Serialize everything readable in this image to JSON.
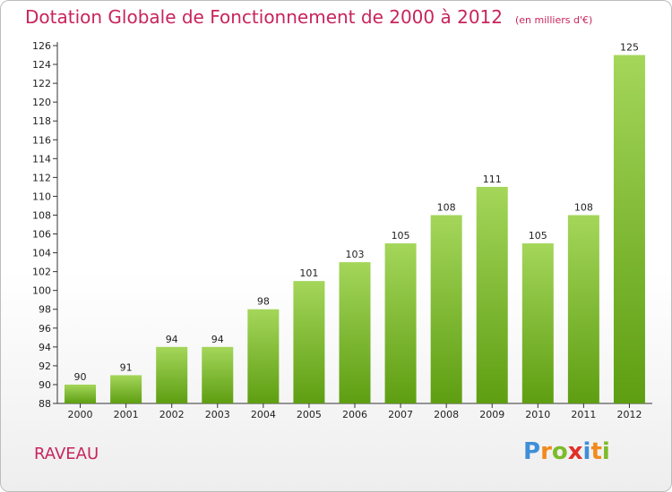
{
  "header": {
    "title": "Dotation Globale de Fonctionnement de 2000 à 2012",
    "subtitle": "(en milliers d'€)"
  },
  "footer": {
    "commune": "RAVEAU",
    "logo_text": "Proxiti",
    "logo_letters": [
      "P",
      "r",
      "o",
      "x",
      "i",
      "t",
      "i"
    ]
  },
  "colors": {
    "title": "#c8245d",
    "bar_top": "#a4d65a",
    "bar_bottom": "#5e9e12",
    "logo": [
      "#3e8fd8",
      "#f28a1b",
      "#7dbb2a",
      "#e0302a",
      "#3e8fd8",
      "#f28a1b",
      "#7dbb2a"
    ]
  },
  "chart_data": {
    "type": "bar",
    "title": "Dotation Globale de Fonctionnement de 2000 à 2012",
    "subtitle": "(en milliers d'€)",
    "categories": [
      "2000",
      "2001",
      "2002",
      "2003",
      "2004",
      "2005",
      "2006",
      "2007",
      "2008",
      "2009",
      "2010",
      "2011",
      "2012"
    ],
    "values": [
      90,
      91,
      94,
      94,
      98,
      101,
      103,
      105,
      108,
      111,
      105,
      108,
      125
    ],
    "ylim": [
      88,
      126
    ],
    "ytick_step": 2,
    "grid": false,
    "data_labels": true
  }
}
